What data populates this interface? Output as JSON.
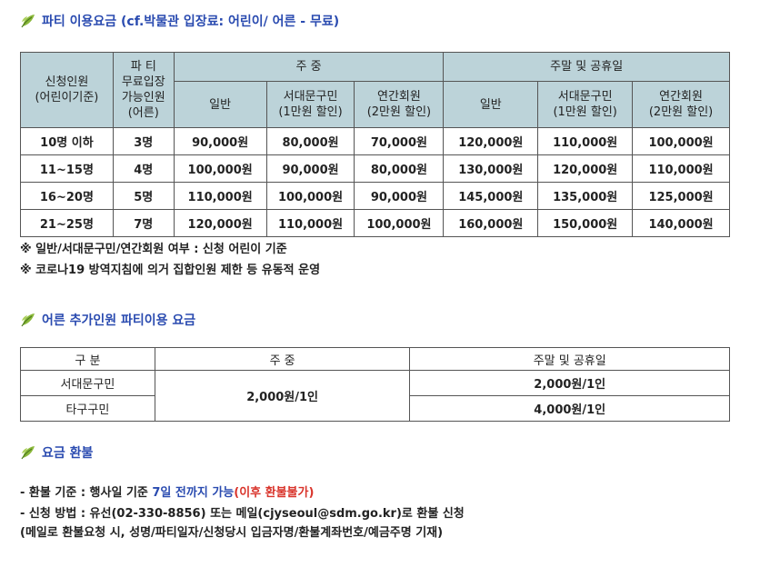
{
  "section1": {
    "title": "파티 이용요금 (cf.박물관 입장료: 어린이/ 어른 - 무료)",
    "headers": {
      "col1": [
        "신청인원",
        "(어린이기준)"
      ],
      "col2": [
        "파 티",
        "무료입장",
        "가능인원",
        "(어른)"
      ],
      "weekday": "주 중",
      "weekend": "주말 및 공휴일",
      "general": "일반",
      "resident": [
        "서대문구민",
        "(1만원 할인)"
      ],
      "member": [
        "연간회원",
        "(2만원 할인)"
      ]
    },
    "rows": [
      [
        "10명 이하",
        "3명",
        "90,000원",
        "80,000원",
        "70,000원",
        "120,000원",
        "110,000원",
        "100,000원"
      ],
      [
        "11~15명",
        "4명",
        "100,000원",
        "90,000원",
        "80,000원",
        "130,000원",
        "120,000원",
        "110,000원"
      ],
      [
        "16~20명",
        "5명",
        "110,000원",
        "100,000원",
        "90,000원",
        "145,000원",
        "135,000원",
        "125,000원"
      ],
      [
        "21~25명",
        "7명",
        "120,000원",
        "110,000원",
        "100,000원",
        "160,000원",
        "150,000원",
        "140,000원"
      ]
    ],
    "notes": [
      "※ 일반/서대문구민/연간회원 여부 : 신청 어린이 기준",
      "※ 코로나19 방역지침에 의거 집합인원 제한 등 유동적 운영"
    ]
  },
  "section2": {
    "title": "어른 추가인원 파티이용 요금",
    "headers": [
      "구 분",
      "주 중",
      "주말 및 공휴일"
    ],
    "rows": [
      {
        "label": "서대문구민",
        "weekend": "2,000원/1인"
      },
      {
        "label": "타구구민",
        "weekend": "4,000원/1인"
      }
    ],
    "weekday_merged": "2,000원/1인"
  },
  "section3": {
    "title": "요금 환불",
    "line1_prefix": "- 환불 기준 : 행사일 기준 ",
    "line1_blue": "7일 전까지 가능",
    "line1_red": "(이후 환불불가)",
    "line2": "- 신청 방법 : 유선(02-330-8856) 또는 메일(cjyseoul@sdm.go.kr)로 환불 신청",
    "line3": "(메일로 환불요청 시, 성명/파티일자/신청당시 입금자명/환불계좌번호/예금주명 기재)"
  },
  "colors": {
    "title": "#2a4bb0",
    "header_bg": "#bcd3d9",
    "leaf": "#8ab83a",
    "red": "#d9342b"
  },
  "icons": [
    "leaf-icon"
  ]
}
